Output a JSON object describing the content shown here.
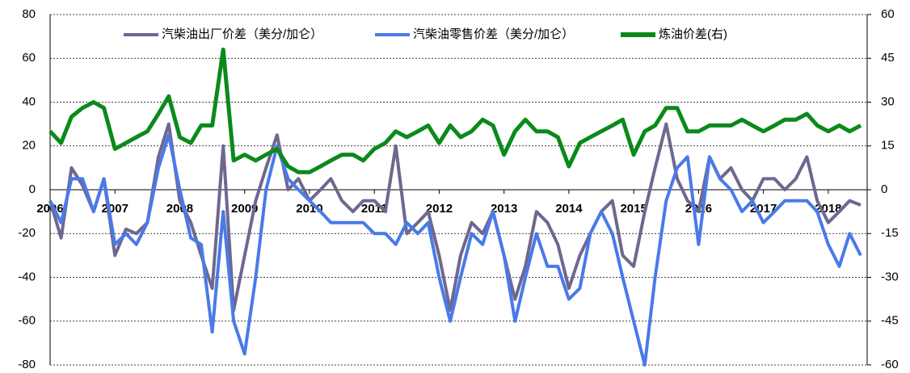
{
  "chart_data": {
    "type": "line",
    "x": [
      2006,
      2006.17,
      2006.33,
      2006.5,
      2006.67,
      2006.83,
      2007,
      2007.17,
      2007.33,
      2007.5,
      2007.67,
      2007.83,
      2008,
      2008.17,
      2008.33,
      2008.5,
      2008.67,
      2008.83,
      2009,
      2009.17,
      2009.33,
      2009.5,
      2009.67,
      2009.83,
      2010,
      2010.17,
      2010.33,
      2010.5,
      2010.67,
      2010.83,
      2011,
      2011.17,
      2011.33,
      2011.5,
      2011.67,
      2011.83,
      2012,
      2012.17,
      2012.33,
      2012.5,
      2012.67,
      2012.83,
      2013,
      2013.17,
      2013.33,
      2013.5,
      2013.67,
      2013.83,
      2014,
      2014.17,
      2014.33,
      2014.5,
      2014.67,
      2014.83,
      2015,
      2015.17,
      2015.33,
      2015.5,
      2015.67,
      2015.83,
      2016,
      2016.17,
      2016.33,
      2016.5,
      2016.67,
      2016.83,
      2017,
      2017.17,
      2017.33,
      2017.5,
      2017.67,
      2017.83,
      2018,
      2018.17,
      2018.33,
      2018.5
    ],
    "series": [
      {
        "name": "汽柴油出厂价差（美分/加仑）",
        "color": "#6e6890",
        "values": [
          -5,
          -22,
          10,
          2,
          -10,
          5,
          -30,
          -18,
          -20,
          -15,
          15,
          30,
          -5,
          -15,
          -30,
          -45,
          20,
          -55,
          -30,
          -5,
          10,
          25,
          0,
          5,
          -5,
          0,
          5,
          -5,
          -10,
          -5,
          -5,
          -10,
          20,
          -20,
          -15,
          -10,
          -30,
          -55,
          -30,
          -15,
          -20,
          -10,
          -30,
          -50,
          -35,
          -10,
          -15,
          -25,
          -45,
          -30,
          -20,
          -10,
          -5,
          -30,
          -35,
          -10,
          10,
          30,
          5,
          -5,
          -10,
          15,
          5,
          10,
          0,
          -5,
          5,
          5,
          0,
          5,
          15,
          -5,
          -15,
          -10,
          -5,
          -7
        ]
      },
      {
        "name": "汽柴油零售价差（美分/加仑）",
        "color": "#4a7ae8",
        "values": [
          -5,
          -15,
          5,
          5,
          -10,
          5,
          -25,
          -20,
          -25,
          -15,
          10,
          25,
          0,
          -22,
          -25,
          -65,
          -10,
          -60,
          -75,
          -40,
          0,
          20,
          5,
          0,
          -5,
          -10,
          -15,
          -15,
          -15,
          -15,
          -20,
          -20,
          -25,
          -15,
          -20,
          -15,
          -40,
          -60,
          -40,
          -20,
          -25,
          -10,
          -30,
          -60,
          -40,
          -20,
          -35,
          -35,
          -50,
          -45,
          -20,
          -10,
          -20,
          -40,
          -60,
          -80,
          -40,
          -5,
          10,
          15,
          -25,
          15,
          5,
          0,
          -10,
          -5,
          -15,
          -10,
          -5,
          -5,
          -5,
          -10,
          -25,
          -35,
          -20,
          -30
        ]
      },
      {
        "name": "炼油价差(右)",
        "color": "#0b8a1a",
        "axis": "y2",
        "values": [
          20,
          16,
          25,
          28,
          30,
          28,
          14,
          16,
          18,
          20,
          26,
          32,
          18,
          16,
          22,
          22,
          48,
          10,
          12,
          10,
          12,
          14,
          8,
          6,
          6,
          8,
          10,
          12,
          12,
          10,
          14,
          16,
          20,
          18,
          20,
          22,
          16,
          22,
          18,
          20,
          24,
          22,
          12,
          20,
          24,
          20,
          20,
          18,
          8,
          16,
          18,
          20,
          22,
          24,
          12,
          20,
          22,
          28,
          28,
          20,
          20,
          22,
          22,
          22,
          24,
          22,
          20,
          22,
          24,
          24,
          26,
          22,
          20,
          22,
          20,
          22
        ]
      }
    ],
    "xlim": [
      2006,
      2018.6
    ],
    "xticks": [
      2006,
      2007,
      2008,
      2009,
      2010,
      2011,
      2012,
      2013,
      2014,
      2015,
      2016,
      2017,
      2018
    ],
    "ylim": [
      -80,
      80
    ],
    "yticks": [
      -80,
      -60,
      -40,
      -20,
      0,
      20,
      40,
      60,
      80
    ],
    "y2lim": [
      -60,
      60
    ],
    "y2ticks": [
      -60,
      -45,
      -30,
      -15,
      0,
      15,
      30,
      45,
      60
    ],
    "grid": true
  }
}
